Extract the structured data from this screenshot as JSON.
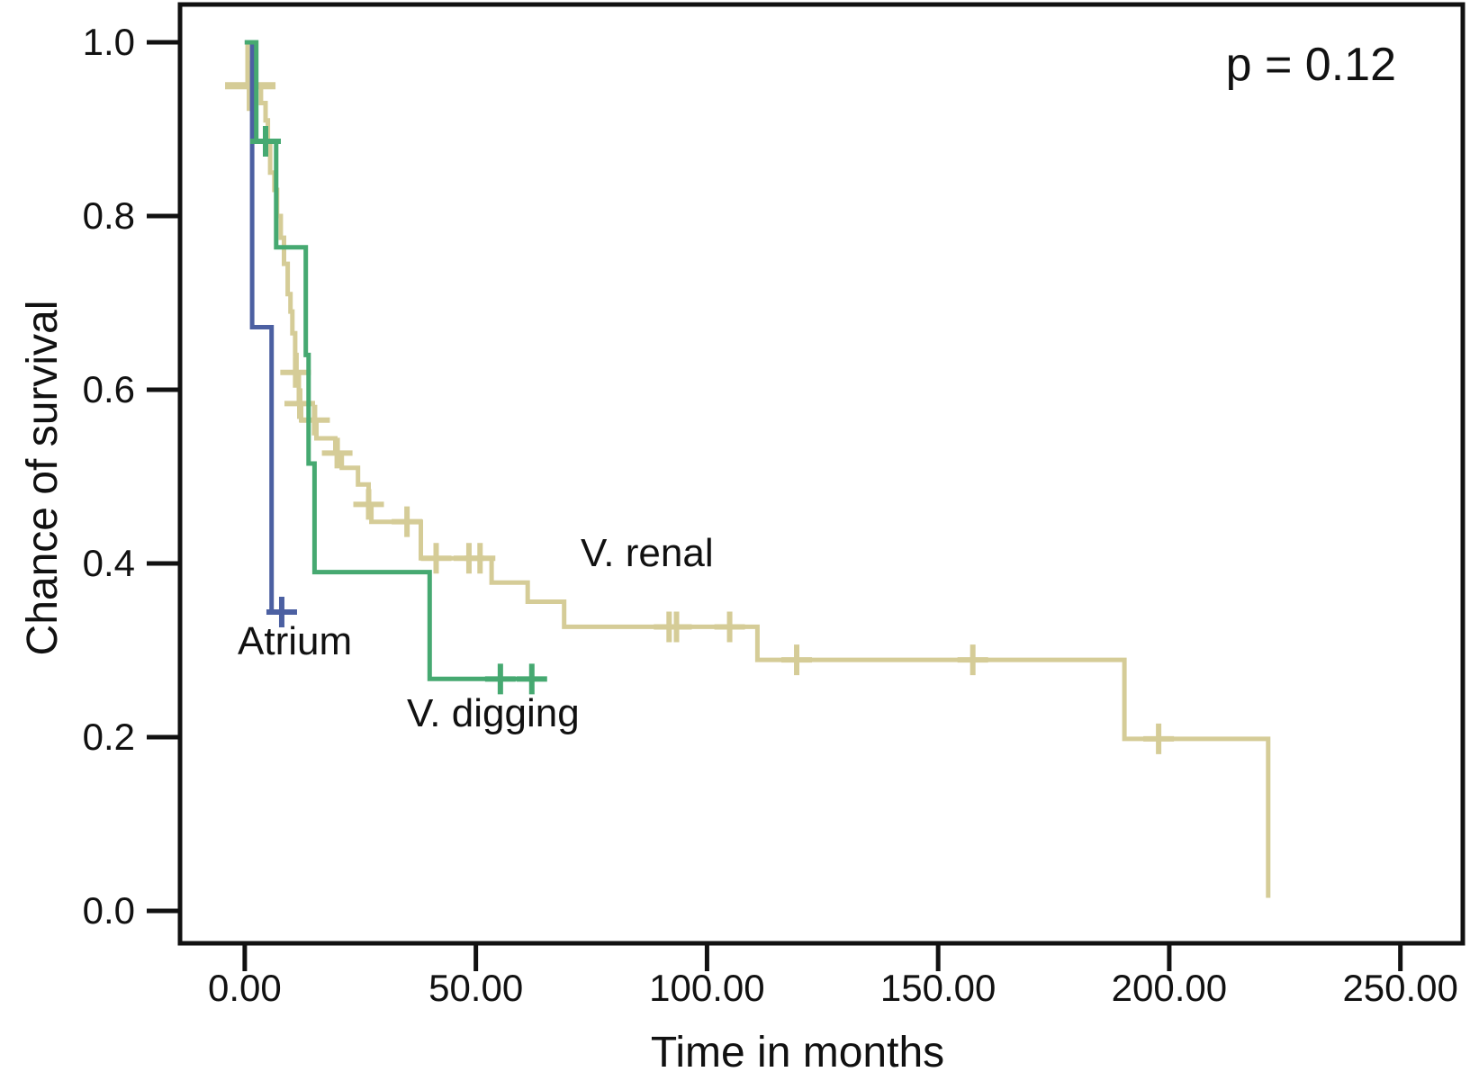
{
  "chart_data": {
    "type": "line",
    "subtype": "kaplan-meier-step",
    "title": "",
    "annotation": "p = 0.12",
    "xlabel": "Time in months",
    "ylabel": "Chance of survival",
    "xlim": [
      -14,
      263.5
    ],
    "ylim": [
      -0.0373,
      1.0435
    ],
    "grid": false,
    "frame_color": "#111111",
    "x_ticks": [
      {
        "value": 0,
        "label": "0.00"
      },
      {
        "value": 50,
        "label": "50.00"
      },
      {
        "value": 100,
        "label": "100.00"
      },
      {
        "value": 150,
        "label": "150.00"
      },
      {
        "value": 200,
        "label": "200.00"
      },
      {
        "value": 250,
        "label": "250.00"
      }
    ],
    "y_ticks": [
      {
        "value": 0.0,
        "label": "0.0"
      },
      {
        "value": 0.2,
        "label": "0.2"
      },
      {
        "value": 0.4,
        "label": "0.4"
      },
      {
        "value": 0.6,
        "label": "0.6"
      },
      {
        "value": 0.8,
        "label": "0.8"
      },
      {
        "value": 1.0,
        "label": "1.0"
      }
    ],
    "series": [
      {
        "name": "v-renal",
        "label": "V. renal",
        "color": "#d5cc97",
        "steps": [
          [
            0,
            1.0
          ],
          [
            0.6,
            0.95
          ],
          [
            3.5,
            0.93
          ],
          [
            4.5,
            0.91
          ],
          [
            5.0,
            0.885
          ],
          [
            5.5,
            0.85
          ],
          [
            6.4,
            0.83
          ],
          [
            7.0,
            0.8
          ],
          [
            7.8,
            0.775
          ],
          [
            8.5,
            0.745
          ],
          [
            9.3,
            0.71
          ],
          [
            9.9,
            0.69
          ],
          [
            10.3,
            0.665
          ],
          [
            10.9,
            0.64
          ],
          [
            11.2,
            0.62
          ],
          [
            11.7,
            0.584
          ],
          [
            12.2,
            0.565
          ],
          [
            15.5,
            0.544
          ],
          [
            19.6,
            0.527
          ],
          [
            21.0,
            0.51
          ],
          [
            24.5,
            0.491
          ],
          [
            26.8,
            0.468
          ],
          [
            27.4,
            0.448
          ],
          [
            38.1,
            0.406
          ],
          [
            53.4,
            0.378
          ],
          [
            61.2,
            0.356
          ],
          [
            69.1,
            0.327
          ],
          [
            110.9,
            0.289
          ],
          [
            190.3,
            0.198
          ],
          [
            221.4,
            0.015
          ]
        ],
        "end_t": 221.4,
        "censors": [
          [
            11.0,
            0.62
          ],
          [
            11.9,
            0.584
          ],
          [
            15.1,
            0.565
          ],
          [
            20.0,
            0.527
          ],
          [
            26.8,
            0.468
          ],
          [
            35.1,
            0.448
          ],
          [
            41.4,
            0.406
          ],
          [
            48.5,
            0.406
          ],
          [
            50.9,
            0.406
          ],
          [
            91.8,
            0.327
          ],
          [
            93.4,
            0.327
          ],
          [
            104.9,
            0.327
          ],
          [
            119.4,
            0.289
          ],
          [
            157.5,
            0.289
          ],
          [
            197.7,
            0.198
          ]
        ],
        "big_censors": [
          [
            1.2,
            0.95
          ]
        ]
      },
      {
        "name": "atrium",
        "label": "Atrium",
        "color": "#4c60a2",
        "steps": [
          [
            0,
            1.0
          ],
          [
            1.6,
            0.672
          ],
          [
            5.8,
            0.344
          ]
        ],
        "end_t": 9.5,
        "censors": [
          [
            8.0,
            0.344
          ]
        ],
        "big_censors": []
      },
      {
        "name": "v-digging",
        "label": "V. digging",
        "color": "#46a971",
        "steps": [
          [
            0,
            1.0
          ],
          [
            2.5,
            0.886
          ],
          [
            6.8,
            0.764
          ],
          [
            13.2,
            0.64
          ],
          [
            13.8,
            0.515
          ],
          [
            15.1,
            0.39
          ],
          [
            40.0,
            0.267
          ]
        ],
        "end_t": 65.0,
        "censors": [
          [
            4.5,
            0.886
          ],
          [
            55.3,
            0.267
          ],
          [
            62.1,
            0.267
          ]
        ],
        "big_censors": []
      }
    ]
  }
}
